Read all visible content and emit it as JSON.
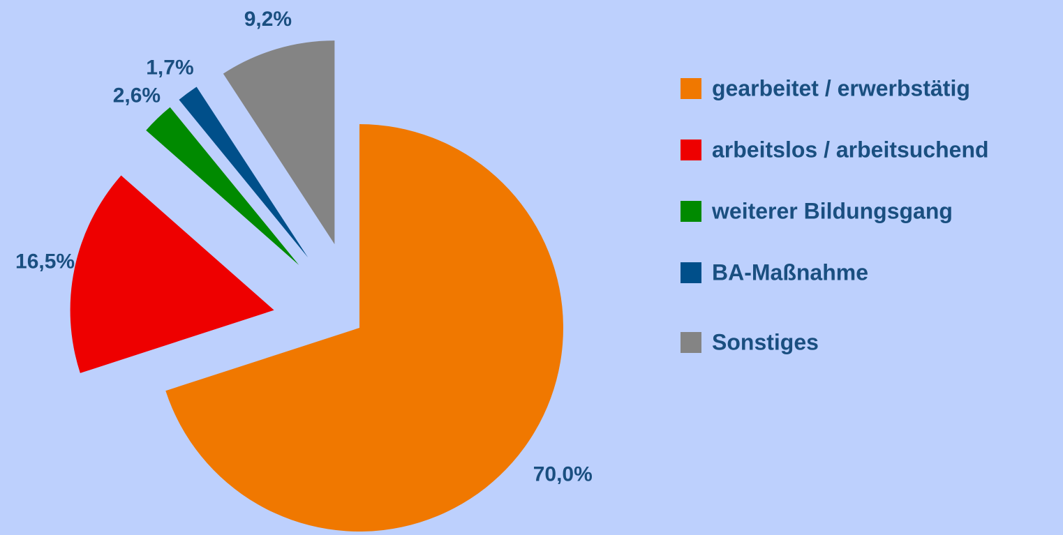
{
  "chart_data": {
    "type": "pie",
    "categories": [
      "gearbeitet / erwerbstätig",
      "arbeitslos / arbeitsuchend",
      "weiterer Bildungsgang",
      "BA-Maßnahme",
      "Sonstiges"
    ],
    "values": [
      70.0,
      16.5,
      2.6,
      1.7,
      9.2
    ],
    "value_labels": [
      "70,0%",
      "16,5%",
      "2,6%",
      "1,7%",
      "9,2%"
    ],
    "colors": [
      "#f07800",
      "#ee0000",
      "#008a00",
      "#004f8a",
      "#848484"
    ],
    "legend": "right"
  }
}
